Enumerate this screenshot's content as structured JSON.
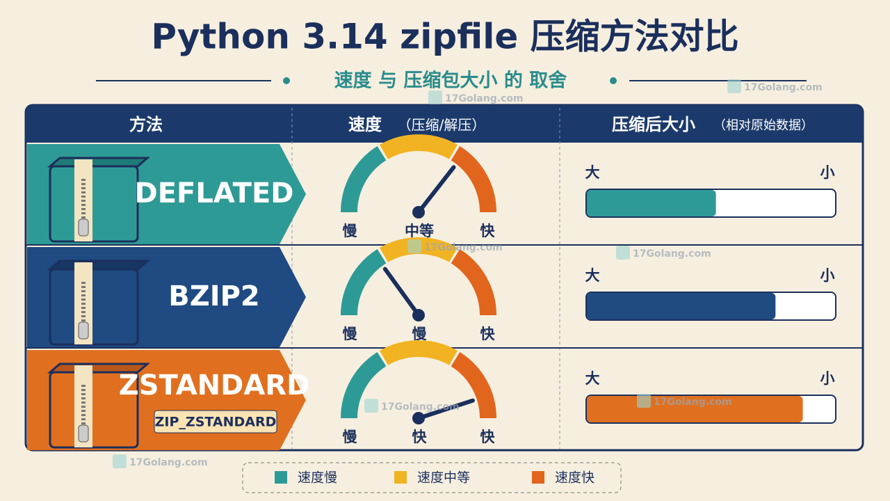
{
  "header": {
    "title": "Python 3.14 zipfile 压缩方法对比",
    "subtitle": "速度 与 压缩包大小 的 取舍"
  },
  "table": {
    "columns": [
      {
        "label": "方法"
      },
      {
        "label": "速度",
        "note": "（压缩/解压）"
      },
      {
        "label": "压缩后大小",
        "note": "（相对原始数据）"
      }
    ],
    "rows": [
      {
        "method": "DEFLATED",
        "gauge": {
          "low": "慢",
          "mid": "中等",
          "high": "快"
        },
        "size": {
          "left": "大",
          "right": "小"
        }
      },
      {
        "method": "BZIP2",
        "gauge": {
          "low": "慢",
          "mid": "慢",
          "high": "快"
        },
        "size": {
          "left": "大",
          "right": "小"
        }
      },
      {
        "method": "ZSTANDARD",
        "alias": "ZIP_ZSTANDARD",
        "gauge": {
          "low": "慢",
          "mid": "快",
          "high": "快"
        },
        "size": {
          "left": "大",
          "right": "小"
        }
      }
    ]
  },
  "legend": [
    "速度慢",
    "速度中等",
    "速度快"
  ],
  "watermark": "17Golang.com"
}
